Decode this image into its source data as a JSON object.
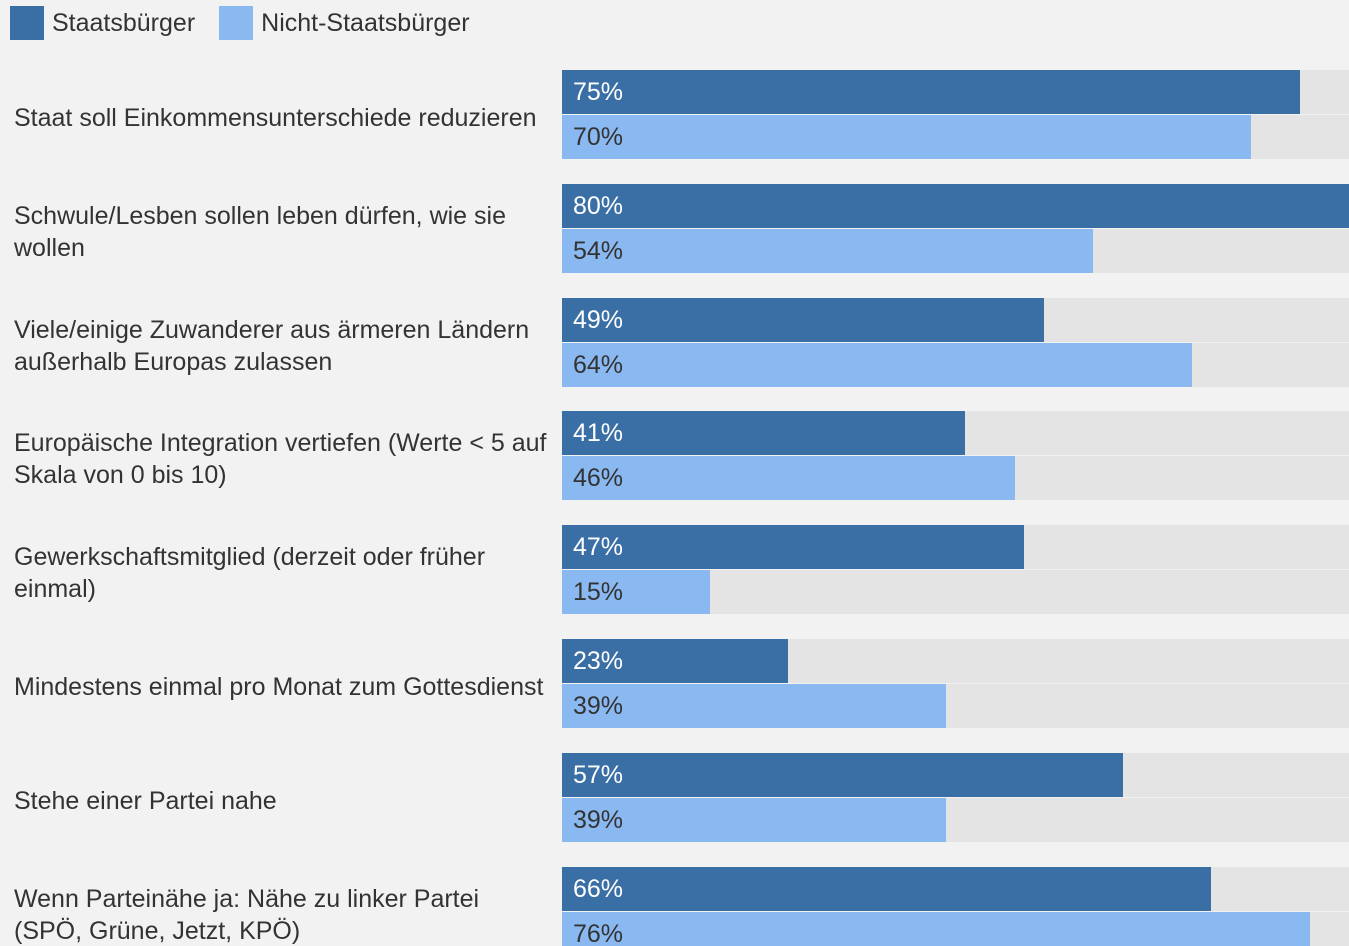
{
  "colors": {
    "citizen": "#3a6fa5",
    "non_citizen": "#8ab9f1",
    "track": "#e4e4e4",
    "text": "#333333"
  },
  "legend": {
    "citizen_label": "Staatsbürger",
    "non_citizen_label": "Nicht-Staatsbürger"
  },
  "chart_data": {
    "type": "bar",
    "orientation": "horizontal",
    "xlim": [
      0,
      80
    ],
    "legend_position": "top-left",
    "grid": false,
    "categories": [
      "Staat soll Einkommensunterschiede reduzieren",
      "Schwule/Lesben sollen leben dürfen, wie sie wollen",
      "Viele/einige Zuwanderer aus ärmeren Ländern außerhalb Europas zulassen",
      "Europäische Integration vertiefen (Werte < 5 auf Skala von 0 bis 10)",
      "Gewerkschaftsmitglied (derzeit oder früher einmal)",
      "Mindestens einmal pro Monat zum Gottesdienst",
      "Stehe einer Partei nahe",
      "Wenn Parteinähe ja: Nähe zu linker Partei (SPÖ, Grüne, Jetzt, KPÖ)"
    ],
    "series": [
      {
        "name": "Staatsbürger",
        "values": [
          75,
          80,
          49,
          41,
          47,
          23,
          57,
          66
        ],
        "labels": [
          "75%",
          "80%",
          "49%",
          "41%",
          "47%",
          "23%",
          "57%",
          "66%"
        ]
      },
      {
        "name": "Nicht-Staatsbürger",
        "values": [
          70,
          54,
          64,
          46,
          15,
          39,
          39,
          76
        ],
        "labels": [
          "70%",
          "54%",
          "64%",
          "46%",
          "15%",
          "39%",
          "39%",
          "76%"
        ]
      }
    ]
  }
}
